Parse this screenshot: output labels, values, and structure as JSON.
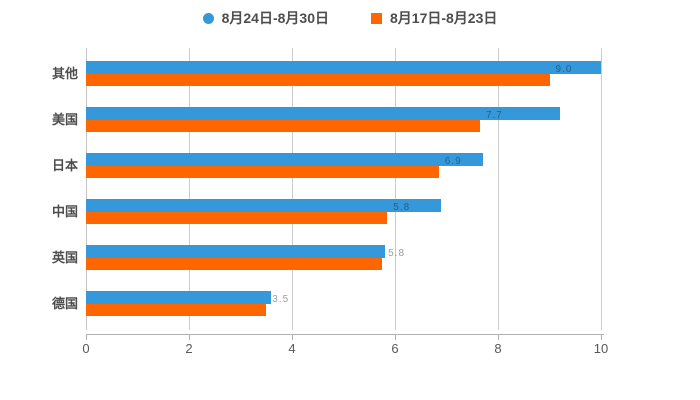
{
  "background": "#ffffff",
  "colors": {
    "series1": "#3498db",
    "series2": "#ff6600",
    "gridline": "#cccccc",
    "axis": "#b0b0b0",
    "text": "#4d4d4d",
    "tick_text": "#595959"
  },
  "legend": {
    "items": [
      {
        "label": "8月24日-8月30日",
        "color": "#3498db",
        "marker": "circle"
      },
      {
        "label": "8月17日-8月23日",
        "color": "#ff6600",
        "marker": "square"
      }
    ]
  },
  "chart_data": {
    "type": "bar",
    "orientation": "horizontal",
    "title": "",
    "xlabel": "",
    "ylabel": "",
    "categories": [
      "其他",
      "美国",
      "日本",
      "中国",
      "英国",
      "德国"
    ],
    "series": [
      {
        "name": "8月24日-8月30日",
        "color": "#3498db",
        "values": [
          10.0,
          9.2,
          7.7,
          6.9,
          5.8,
          3.6
        ]
      },
      {
        "name": "8月17日-8月23日",
        "color": "#ff6600",
        "values": [
          9.0,
          7.65,
          6.85,
          5.85,
          5.75,
          3.5
        ]
      }
    ],
    "faint_value_labels": [
      "9.0",
      "7.7",
      "6.9",
      "5.8",
      "5.8",
      "3.5"
    ],
    "x_ticks": [
      0,
      2,
      4,
      6,
      8,
      10
    ],
    "xlim": [
      0,
      10
    ],
    "grid": true,
    "legend_position": "top"
  }
}
